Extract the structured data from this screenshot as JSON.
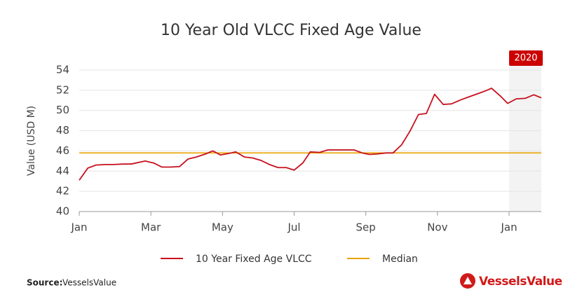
{
  "chart_data": {
    "type": "line",
    "title": "10 Year Old VLCC Fixed Age Value",
    "y_label": "Value (USD M)",
    "x": [
      0,
      0.24,
      0.47,
      0.73,
      0.96,
      1.22,
      1.45,
      1.84,
      2.08,
      2.31,
      2.55,
      2.8,
      3.04,
      3.27,
      3.53,
      3.73,
      3.94,
      4.18,
      4.37,
      4.61,
      4.84,
      5.08,
      5.31,
      5.55,
      5.78,
      6.0,
      6.24,
      6.45,
      6.71,
      6.94,
      7.2,
      7.43,
      7.67,
      7.9,
      8.1,
      8.33,
      8.57,
      8.76,
      9.0,
      9.24,
      9.47,
      9.69,
      9.92,
      10.16,
      10.39,
      10.65,
      10.88,
      11.12,
      11.35,
      11.51,
      11.75,
      11.96,
      12.2,
      12.45,
      12.69,
      12.9
    ],
    "series": [
      {
        "name": "10 Year Fixed Age VLCC",
        "color": "#c8101e",
        "values": [
          43.1,
          44.3,
          44.6,
          44.65,
          44.65,
          44.7,
          44.7,
          45.0,
          44.8,
          44.4,
          44.4,
          44.45,
          45.2,
          45.4,
          45.7,
          46.0,
          45.6,
          45.75,
          45.9,
          45.4,
          45.3,
          45.05,
          44.65,
          44.35,
          44.35,
          44.1,
          44.8,
          45.9,
          45.85,
          46.1,
          46.1,
          46.1,
          46.1,
          45.8,
          45.65,
          45.7,
          45.8,
          45.8,
          46.6,
          48.0,
          49.6,
          49.7,
          51.6,
          50.6,
          50.65,
          51.05,
          51.35,
          51.65,
          51.95,
          52.2,
          51.45,
          50.7,
          51.15,
          51.2,
          51.55,
          51.25
        ]
      }
    ],
    "reference_lines": [
      {
        "name": "Median",
        "value": 45.8,
        "color": "#e8a200"
      }
    ],
    "highlight": {
      "label": "2020",
      "from": 12,
      "color": "#cc0000"
    },
    "xlim": [
      0,
      12.9
    ],
    "xticks": [
      {
        "value": 0,
        "label": "Jan"
      },
      {
        "value": 2,
        "label": "Mar"
      },
      {
        "value": 4,
        "label": "May"
      },
      {
        "value": 6,
        "label": "Jul"
      },
      {
        "value": 8,
        "label": "Sep"
      },
      {
        "value": 10,
        "label": "Nov"
      },
      {
        "value": 12,
        "label": "Jan"
      }
    ],
    "ylim": [
      40,
      54
    ],
    "yticks": [
      40,
      42,
      44,
      46,
      48,
      50,
      52,
      54
    ],
    "grid": true
  },
  "source_label": "Source:",
  "source": "VesselsValue",
  "logo": "VesselsValue"
}
